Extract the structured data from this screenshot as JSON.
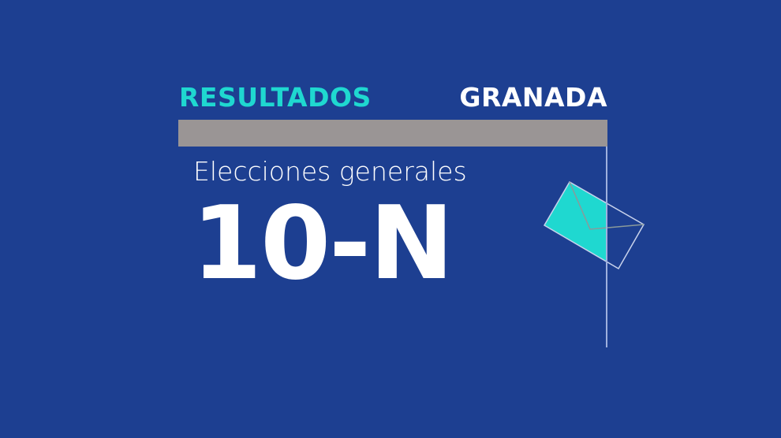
{
  "header": {
    "label": "RESULTADOS",
    "location": "GRANADA"
  },
  "subtitle": "Elecciones generales",
  "title": "10-N",
  "colors": {
    "background": "#1d3f91",
    "accent": "#1fd8d0",
    "bar": "#9a9595"
  },
  "icons": [
    "envelope-icon"
  ]
}
